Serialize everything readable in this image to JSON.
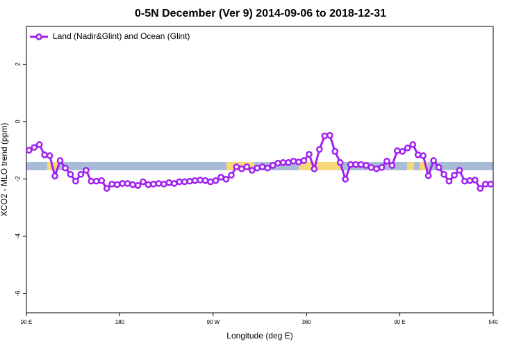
{
  "chart_data": {
    "type": "line",
    "title": "0-5N December (Ver 9)   2014-09-06 to 2018-12-31",
    "x_label": "Longitude (deg E)",
    "y_label": "XCO2 - MLO trend (ppm)",
    "x": [
      92.5,
      97.5,
      102.5,
      107.5,
      112.5,
      117.5,
      122.5,
      127.5,
      132.5,
      137.5,
      142.5,
      147.5,
      152.5,
      157.5,
      162.5,
      167.5,
      172.5,
      177.5,
      182.5,
      187.5,
      192.5,
      197.5,
      202.5,
      207.5,
      212.5,
      217.5,
      222.5,
      227.5,
      232.5,
      237.5,
      242.5,
      247.5,
      252.5,
      257.5,
      262.5,
      267.5,
      272.5,
      277.5,
      282.5,
      287.5,
      292.5,
      297.5,
      302.5,
      307.5,
      312.5,
      317.5,
      322.5,
      327.5,
      332.5,
      337.5,
      342.5,
      347.5,
      352.5,
      357.5,
      362.5,
      367.5,
      372.5,
      377.5,
      382.5,
      387.5,
      392.5,
      397.5,
      402.5,
      407.5,
      412.5,
      417.5,
      422.5,
      427.5,
      432.5,
      437.5,
      442.5,
      447.5,
      452.5,
      457.5,
      462.5,
      467.5,
      472.5,
      477.5,
      482.5,
      487.5,
      492.5,
      497.5,
      502.5,
      507.5,
      512.5,
      517.5,
      522.5,
      527.5,
      532.5,
      537.5
    ],
    "series": [
      {
        "name": "Land (Nadir&Glint) and Ocean (Glint)",
        "color": "#a020f0",
        "values": [
          -1.0,
          -0.9,
          -0.8,
          -1.16,
          -1.19,
          -1.9,
          -1.36,
          -1.62,
          -1.84,
          -2.08,
          -1.84,
          -1.7,
          -2.08,
          -2.08,
          -2.06,
          -2.33,
          -2.18,
          -2.2,
          -2.16,
          -2.16,
          -2.2,
          -2.23,
          -2.1,
          -2.2,
          -2.18,
          -2.16,
          -2.18,
          -2.13,
          -2.16,
          -2.1,
          -2.1,
          -2.08,
          -2.06,
          -2.04,
          -2.06,
          -2.1,
          -2.06,
          -1.94,
          -2.01,
          -1.87,
          -1.58,
          -1.65,
          -1.58,
          -1.7,
          -1.62,
          -1.58,
          -1.62,
          -1.53,
          -1.45,
          -1.43,
          -1.43,
          -1.38,
          -1.41,
          -1.36,
          -1.14,
          -1.65,
          -0.97,
          -0.5,
          -0.48,
          -1.04,
          -1.43,
          -2.01,
          -1.5,
          -1.5,
          -1.5,
          -1.53,
          -1.6,
          -1.65,
          -1.6,
          -1.38,
          -1.53,
          -1.02,
          -1.04,
          -0.92,
          -0.8,
          -1.16,
          -1.19,
          -1.89,
          -1.36,
          -1.6,
          -1.84,
          -2.08,
          -1.87,
          -1.7,
          -2.08,
          -2.06,
          -2.04,
          -2.33,
          -2.18,
          -2.18
        ]
      }
    ],
    "xlim": [
      90,
      540
    ],
    "xticks": [
      {
        "value": 90,
        "label": "90 E"
      },
      180,
      {
        "value": 270,
        "label": "90 W"
      },
      360,
      {
        "value": 450,
        "label": "90 E"
      },
      540
    ],
    "ylim": [
      -6.67,
      3.32
    ],
    "yticks": [
      2,
      0,
      -2,
      -4,
      -6
    ],
    "legend": "top-left"
  }
}
